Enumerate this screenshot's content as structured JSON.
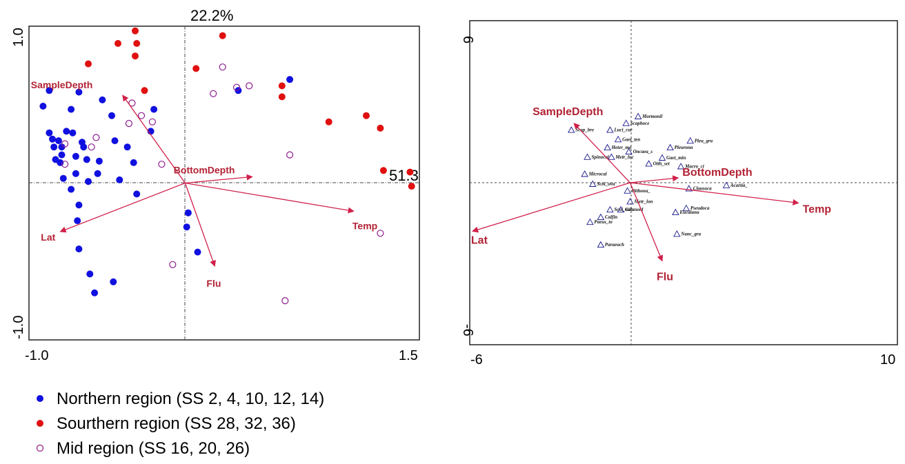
{
  "chart_data": [
    {
      "type": "scatter",
      "panel": "samples",
      "xlim": [
        -1.0,
        1.5
      ],
      "ylim": [
        -1.0,
        1.0
      ],
      "x_ticks": [
        "-1.0",
        "1.5"
      ],
      "y_ticks": [
        "-1.0",
        "1.0"
      ],
      "axis1_pct": "51.3",
      "axis2_pct": "22.2%",
      "series": [
        {
          "name": "Northern region (SS 2, 4, 10, 12, 14)",
          "marker": "filled",
          "color": "#1010e0",
          "points": [
            [
              -0.87,
              0.59
            ],
            [
              -0.91,
              0.49
            ],
            [
              -0.87,
              0.32
            ],
            [
              -0.73,
              0.47
            ],
            [
              -0.72,
              0.32
            ],
            [
              -0.53,
              0.53
            ],
            [
              -0.47,
              0.43
            ],
            [
              -0.68,
              0.58
            ],
            [
              -0.76,
              0.33
            ],
            [
              -0.84,
              0.23
            ],
            [
              -0.85,
              0.28
            ],
            [
              -0.81,
              0.27
            ],
            [
              -0.79,
              0.23
            ],
            [
              -0.66,
              0.26
            ],
            [
              -0.65,
              0.23
            ],
            [
              -0.79,
              0.18
            ],
            [
              -0.83,
              0.15
            ],
            [
              -0.8,
              0.13
            ],
            [
              -0.7,
              0.17
            ],
            [
              -0.63,
              0.15
            ],
            [
              -0.55,
              0.14
            ],
            [
              -0.56,
              0.06
            ],
            [
              -0.78,
              0.03
            ],
            [
              -0.7,
              0.06
            ],
            [
              -0.62,
              0.01
            ],
            [
              -0.45,
              0.27
            ],
            [
              -0.37,
              0.23
            ],
            [
              -0.2,
              0.47
            ],
            [
              -0.22,
              0.33
            ],
            [
              -0.33,
              0.13
            ],
            [
              -0.42,
              0.02
            ],
            [
              -0.73,
              -0.04
            ],
            [
              -0.68,
              -0.14
            ],
            [
              -0.69,
              -0.24
            ],
            [
              -0.31,
              -0.07
            ],
            [
              -0.68,
              -0.42
            ],
            [
              -0.61,
              -0.58
            ],
            [
              -0.58,
              -0.7
            ],
            [
              -0.46,
              -0.63
            ],
            [
              0.02,
              -0.19
            ],
            [
              0.01,
              -0.28
            ],
            [
              0.08,
              -0.44
            ],
            [
              0.34,
              0.59
            ],
            [
              0.67,
              0.66
            ]
          ]
        },
        {
          "name": "Sourthern region (SS 28, 32, 36)",
          "marker": "filled",
          "color": "#e01010",
          "points": [
            [
              -0.32,
              0.97
            ],
            [
              -0.43,
              0.89
            ],
            [
              -0.31,
              0.89
            ],
            [
              -0.32,
              0.81
            ],
            [
              -0.62,
              0.76
            ],
            [
              -0.26,
              0.59
            ],
            [
              0.24,
              0.94
            ],
            [
              0.07,
              0.73
            ],
            [
              0.62,
              0.62
            ],
            [
              0.62,
              0.55
            ],
            [
              0.92,
              0.39
            ],
            [
              1.16,
              0.43
            ],
            [
              1.25,
              0.35
            ],
            [
              1.27,
              0.08
            ],
            [
              1.44,
              0.07
            ],
            [
              1.45,
              -0.02
            ]
          ]
        },
        {
          "name": "Mid region (SS 16, 20, 26)",
          "marker": "open",
          "color": "#8c1a8c",
          "points": [
            [
              0.24,
              0.74
            ],
            [
              0.33,
              0.61
            ],
            [
              0.41,
              0.62
            ],
            [
              0.18,
              0.57
            ],
            [
              -0.34,
              0.51
            ],
            [
              -0.36,
              0.38
            ],
            [
              -0.28,
              0.43
            ],
            [
              -0.21,
              0.39
            ],
            [
              -0.57,
              0.29
            ],
            [
              -0.6,
              0.23
            ],
            [
              -0.77,
              0.25
            ],
            [
              -0.77,
              0.12
            ],
            [
              -0.15,
              0.12
            ],
            [
              0.67,
              0.18
            ],
            [
              1.25,
              -0.32
            ],
            [
              -0.08,
              -0.52
            ],
            [
              0.64,
              -0.75
            ]
          ]
        }
      ],
      "vectors": [
        {
          "name": "SampleDepth",
          "x": -0.4,
          "y": 0.56
        },
        {
          "name": "BottomDepth",
          "x": 0.43,
          "y": 0.04
        },
        {
          "name": "Temp",
          "x": 1.08,
          "y": -0.18
        },
        {
          "name": "Lat",
          "x": -0.8,
          "y": -0.31
        },
        {
          "name": "Flu",
          "x": 0.19,
          "y": -0.53
        }
      ]
    },
    {
      "type": "scatter",
      "panel": "species",
      "xlim": [
        -6,
        10
      ],
      "ylim": [
        -6,
        6
      ],
      "x_ticks": [
        "-6",
        "10"
      ],
      "y_ticks": [
        "-6",
        "6"
      ],
      "vectors": [
        {
          "name": "SampleDepth",
          "x": -2.1,
          "y": 2.2
        },
        {
          "name": "BottomDepth",
          "x": 1.8,
          "y": 0.18
        },
        {
          "name": "Temp",
          "x": 6.3,
          "y": -0.75
        },
        {
          "name": "Lat",
          "x": -5.9,
          "y": -1.8
        },
        {
          "name": "Flu",
          "x": 1.2,
          "y": -2.9
        }
      ],
      "species": [
        {
          "name": "Mormonil",
          "x": 0.3,
          "y": 2.45
        },
        {
          "name": "Scaphoce",
          "x": -0.15,
          "y": 2.2
        },
        {
          "name": "Scap_bre",
          "x": -2.2,
          "y": 1.95
        },
        {
          "name": "Luci_cur",
          "x": -0.75,
          "y": 1.95
        },
        {
          "name": "Gaet_ten",
          "x": -0.45,
          "y": 1.6
        },
        {
          "name": "Pleu_gra",
          "x": 2.25,
          "y": 1.55
        },
        {
          "name": "Heter_mo",
          "x": -0.85,
          "y": 1.3
        },
        {
          "name": "Pleurona",
          "x": 1.5,
          "y": 1.3
        },
        {
          "name": "Oncaea_s",
          "x": -0.05,
          "y": 1.15
        },
        {
          "name": "Spinocal",
          "x": -1.6,
          "y": 0.95
        },
        {
          "name": "Metr_luc",
          "x": -0.7,
          "y": 0.95
        },
        {
          "name": "Gaet_min",
          "x": 1.2,
          "y": 0.92
        },
        {
          "name": "Oith_set",
          "x": 0.7,
          "y": 0.7
        },
        {
          "name": "Macro_ci",
          "x": 1.9,
          "y": 0.6
        },
        {
          "name": "Microcal",
          "x": -1.7,
          "y": 0.32
        },
        {
          "name": "Scol_ova",
          "x": -1.4,
          "y": -0.05
        },
        {
          "name": "Clausoca",
          "x": 2.2,
          "y": -0.22
        },
        {
          "name": "Acartia_",
          "x": 3.6,
          "y": -0.1
        },
        {
          "name": "Oithona_",
          "x": -0.1,
          "y": -0.3
        },
        {
          "name": "Metr_lon",
          "x": 0.0,
          "y": -0.7
        },
        {
          "name": "Scol_min",
          "x": -0.75,
          "y": -1.0
        },
        {
          "name": "Calanoid",
          "x": -0.35,
          "y": -1.0
        },
        {
          "name": "Pseudoca",
          "x": 2.1,
          "y": -0.95
        },
        {
          "name": "Eucalanu",
          "x": 1.7,
          "y": -1.1
        },
        {
          "name": "Calfin",
          "x": -1.1,
          "y": -1.28
        },
        {
          "name": "Paeus_to",
          "x": -1.5,
          "y": -1.46
        },
        {
          "name": "Nanc_gra",
          "x": 1.75,
          "y": -1.9
        },
        {
          "name": "Paraeuch",
          "x": -1.1,
          "y": -2.3
        }
      ]
    }
  ]
}
